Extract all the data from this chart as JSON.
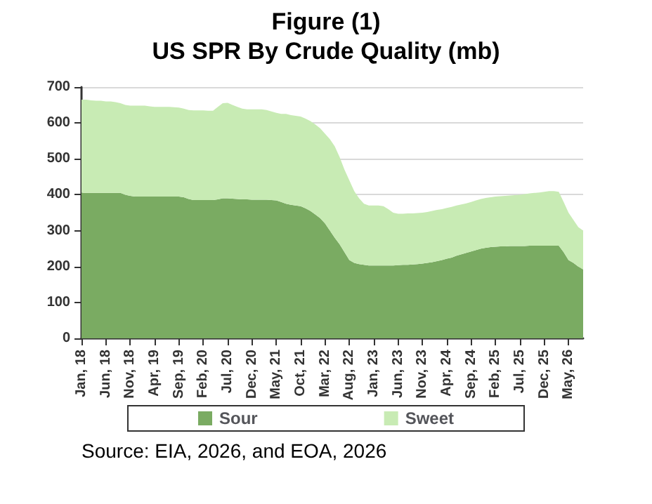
{
  "chart_data": {
    "type": "area",
    "title": "Figure (1)",
    "subtitle": "US SPR By Crude Quality (mb)",
    "categories": [
      "Jan, 18",
      null,
      null,
      null,
      null,
      "Jun, 18",
      null,
      null,
      null,
      null,
      "Nov, 18",
      null,
      null,
      null,
      null,
      "Apr, 19",
      null,
      null,
      null,
      null,
      "Sep, 19",
      null,
      null,
      null,
      null,
      "Feb, 20",
      null,
      null,
      null,
      null,
      "Jul, 20",
      null,
      null,
      null,
      null,
      "Dec, 20",
      null,
      null,
      null,
      null,
      "May, 21",
      null,
      null,
      null,
      null,
      "Oct, 21",
      null,
      null,
      null,
      null,
      "Mar, 22",
      null,
      null,
      null,
      null,
      "Aug, 22",
      null,
      null,
      null,
      null,
      "Jan, 23",
      null,
      null,
      null,
      null,
      "Jun, 23",
      null,
      null,
      null,
      null,
      "Nov, 23",
      null,
      null,
      null,
      null,
      "Apr, 24",
      null,
      null,
      null,
      null,
      "Sep, 24",
      null,
      null,
      null,
      null,
      "Feb, 25",
      null,
      null,
      null,
      null,
      "Jul, 25",
      null,
      null,
      null,
      null,
      "Dec, 25",
      null,
      null,
      null,
      null,
      "May, 26",
      null,
      null,
      null
    ],
    "stacked": true,
    "series": [
      {
        "name": "Sour",
        "color": "#7aab62",
        "values": [
          405,
          405,
          405,
          405,
          405,
          405,
          405,
          405,
          405,
          400,
          397,
          395,
          395,
          395,
          395,
          395,
          395,
          395,
          395,
          395,
          395,
          393,
          388,
          385,
          385,
          385,
          385,
          385,
          387,
          390,
          390,
          389,
          388,
          387,
          387,
          386,
          386,
          386,
          386,
          385,
          384,
          380,
          375,
          372,
          370,
          368,
          362,
          355,
          345,
          335,
          320,
          300,
          280,
          262,
          240,
          218,
          210,
          207,
          205,
          203,
          203,
          203,
          203,
          203,
          203,
          204,
          205,
          205,
          206,
          207,
          208,
          210,
          212,
          215,
          218,
          222,
          225,
          230,
          234,
          238,
          242,
          246,
          250,
          252,
          254,
          255,
          256,
          256,
          257,
          257,
          257,
          257,
          258,
          258,
          258,
          258,
          258,
          258,
          258,
          240,
          218,
          210,
          200,
          192
        ]
      },
      {
        "name": "Sweet",
        "color": "#c8ebb4",
        "values": [
          260,
          260,
          258,
          257,
          257,
          255,
          255,
          253,
          250,
          250,
          251,
          253,
          253,
          253,
          251,
          250,
          250,
          250,
          250,
          249,
          248,
          247,
          248,
          250,
          250,
          250,
          249,
          249,
          258,
          265,
          266,
          261,
          257,
          253,
          251,
          252,
          252,
          252,
          250,
          247,
          244,
          245,
          250,
          250,
          250,
          250,
          250,
          250,
          251,
          250,
          250,
          255,
          255,
          243,
          230,
          222,
          200,
          183,
          170,
          167,
          167,
          167,
          165,
          157,
          147,
          143,
          142,
          143,
          142,
          142,
          142,
          142,
          143,
          143,
          142,
          141,
          141,
          140,
          139,
          138,
          138,
          138,
          138,
          139,
          139,
          140,
          140,
          141,
          141,
          142,
          143,
          145,
          146,
          147,
          148,
          150,
          152,
          152,
          150,
          140,
          132,
          120,
          110,
          108
        ]
      }
    ],
    "ylim": [
      0,
      700
    ],
    "yticks": [
      0,
      100,
      200,
      300,
      400,
      500,
      600,
      700
    ],
    "grid": "y",
    "legend": "bottom",
    "annotations": [
      "Source: EIA, 2026, and EOA, 2026"
    ]
  }
}
